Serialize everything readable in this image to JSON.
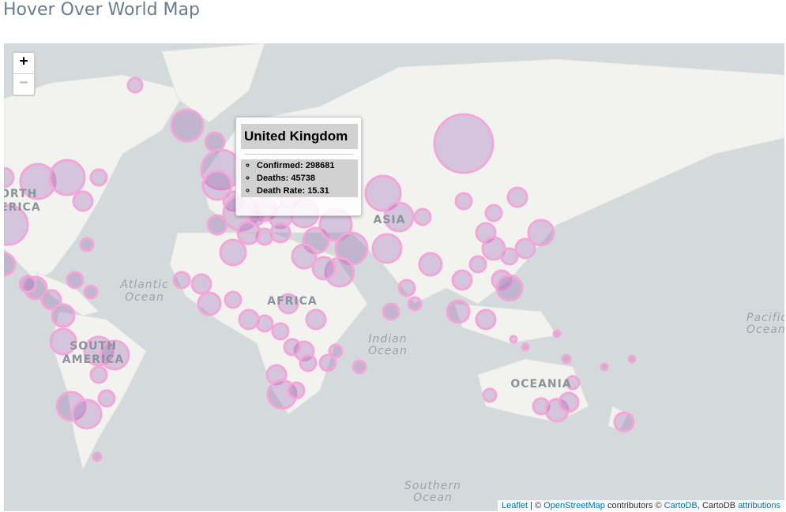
{
  "header": {
    "title": "Hover Over World Map"
  },
  "zoom": {
    "in": "+",
    "out": "−"
  },
  "map_labels": {
    "north_america": [
      "ORTH",
      "ERICA"
    ],
    "south_america": [
      "SOUTH",
      "AMERICA"
    ],
    "africa": "AFRICA",
    "asia": "ASIA",
    "oceania": "OCEANIA",
    "atlantic": [
      "Atlantic",
      "Ocean"
    ],
    "indian": [
      "Indian",
      "Ocean"
    ],
    "pacific": [
      "Pacific",
      "Ocean"
    ],
    "southern": [
      "Southern",
      "Ocean"
    ]
  },
  "tooltip": {
    "country": "United Kingdom",
    "items": [
      {
        "label": "Confirmed:",
        "value": 298681
      },
      {
        "label": "Deaths:",
        "value": 45738
      },
      {
        "label": "Death Rate:",
        "value": 15.31
      }
    ]
  },
  "attribution": {
    "leaflet": "Leaflet",
    "sep": " | © ",
    "osm": "OpenStreetMap",
    "contrib": " contributors © ",
    "carto": "CartoDB",
    "mid": ", CartoDB ",
    "attr": "attributions"
  }
}
